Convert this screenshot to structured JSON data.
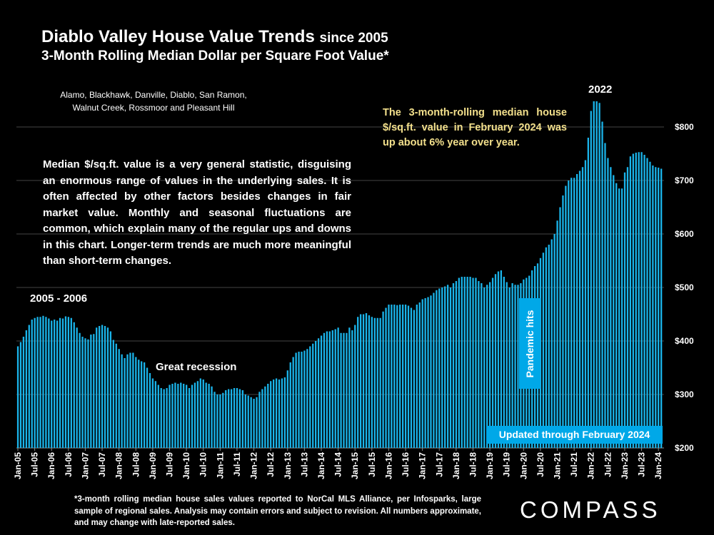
{
  "header": {
    "title": "Diablo Valley House Value Trends",
    "title_suffix": "since 2005",
    "subtitle": "3-Month Rolling Median Dollar per Square Foot Value*"
  },
  "areas": "Alamo, Blackhawk, Danville, Diablo, San Ramon, Walnut Creek, Rossmoor and Pleasant Hill",
  "note": "The 3-month-rolling median house $/sq.ft. value in February 2024 was up about 6% year over year.",
  "description": "Median $/sq.ft. value is a very general statistic, disguising an enormous range of values in the underlying sales. It is often affected by other factors besides changes in fair market value. Monthly and seasonal fluctuations are common, which explain many of the regular ups and downs in this chart. Longer-term trends are much more meaningful than short-term changes.",
  "footnote": "*3-month rolling median house sales values reported to NorCal MLS Alliance, per Infosparks, large sample of regional sales. Analysis may contain errors and subject to revision. All numbers approximate, and may change with late-reported sales.",
  "logo": "COMPASS",
  "colors": {
    "bar": "#1ab4ea",
    "box": "#00a8e8",
    "note": "#f3e08c",
    "grid": "#444444"
  },
  "chart_data": {
    "type": "bar",
    "title": "Diablo Valley House Value Trends since 2005",
    "ylabel": "3-Month Rolling Median $/sq.ft.",
    "ylim": [
      200,
      850
    ],
    "start_month": "Jan-05",
    "y_ticks": [
      "$200",
      "$300",
      "$400",
      "$500",
      "$600",
      "$700",
      "$800"
    ],
    "y_tick_values": [
      200,
      300,
      400,
      500,
      600,
      700,
      800
    ],
    "x_tick_labels": [
      "Jan-05",
      "Jul-05",
      "Jan-06",
      "Jul-06",
      "Jan-07",
      "Jul-07",
      "Jan-08",
      "Jul-08",
      "Jan-09",
      "Jul-09",
      "Jan-10",
      "Jul-10",
      "Jan-11",
      "Jul-11",
      "Jan-12",
      "Jul-12",
      "Jan-13",
      "Jul-13",
      "Jan-14",
      "Jul-14",
      "Jan-15",
      "Jul-15",
      "Jan-16",
      "Jul-16",
      "Jan-17",
      "Jul-17",
      "Jan-18",
      "Jul-18",
      "Jan-19",
      "Jul-19",
      "Jan-20",
      "Jul-20",
      "Jan-21",
      "Jul-21",
      "Jan-22",
      "Jul-22",
      "Jan-23",
      "Jul-23",
      "Jan-24"
    ],
    "annotations": {
      "peak_2005": "2005 - 2006",
      "recession": "Great recession",
      "peak_2022": "2022",
      "pandemic": "Pandemic hits",
      "updated": "Updated through February 2024"
    },
    "values": [
      390,
      398,
      408,
      420,
      430,
      440,
      443,
      445,
      445,
      447,
      445,
      442,
      438,
      440,
      438,
      443,
      442,
      446,
      445,
      443,
      435,
      425,
      415,
      408,
      405,
      403,
      412,
      413,
      425,
      428,
      430,
      428,
      425,
      418,
      402,
      395,
      385,
      375,
      368,
      375,
      378,
      378,
      370,
      365,
      362,
      360,
      350,
      340,
      330,
      325,
      318,
      312,
      310,
      312,
      318,
      320,
      322,
      320,
      322,
      320,
      318,
      312,
      318,
      322,
      325,
      330,
      328,
      322,
      320,
      315,
      305,
      300,
      300,
      303,
      308,
      310,
      310,
      312,
      312,
      310,
      308,
      300,
      298,
      295,
      292,
      295,
      305,
      310,
      315,
      320,
      325,
      328,
      330,
      328,
      330,
      332,
      345,
      360,
      370,
      378,
      380,
      380,
      382,
      385,
      390,
      395,
      400,
      405,
      410,
      415,
      418,
      418,
      420,
      422,
      425,
      415,
      415,
      415,
      425,
      420,
      430,
      445,
      450,
      450,
      452,
      448,
      445,
      443,
      443,
      443,
      455,
      462,
      468,
      468,
      468,
      467,
      468,
      468,
      468,
      466,
      462,
      458,
      468,
      472,
      478,
      480,
      482,
      485,
      490,
      495,
      498,
      500,
      502,
      505,
      500,
      508,
      512,
      518,
      520,
      520,
      520,
      520,
      518,
      518,
      512,
      508,
      500,
      505,
      510,
      518,
      525,
      530,
      532,
      520,
      510,
      500,
      508,
      505,
      505,
      508,
      515,
      518,
      522,
      532,
      540,
      545,
      555,
      565,
      575,
      580,
      590,
      600,
      625,
      650,
      672,
      690,
      700,
      705,
      705,
      712,
      718,
      725,
      738,
      780,
      830,
      848,
      848,
      845,
      810,
      770,
      742,
      725,
      710,
      695,
      685,
      685,
      715,
      725,
      745,
      750,
      752,
      753,
      753,
      748,
      742,
      735,
      728,
      725,
      724,
      722
    ]
  }
}
